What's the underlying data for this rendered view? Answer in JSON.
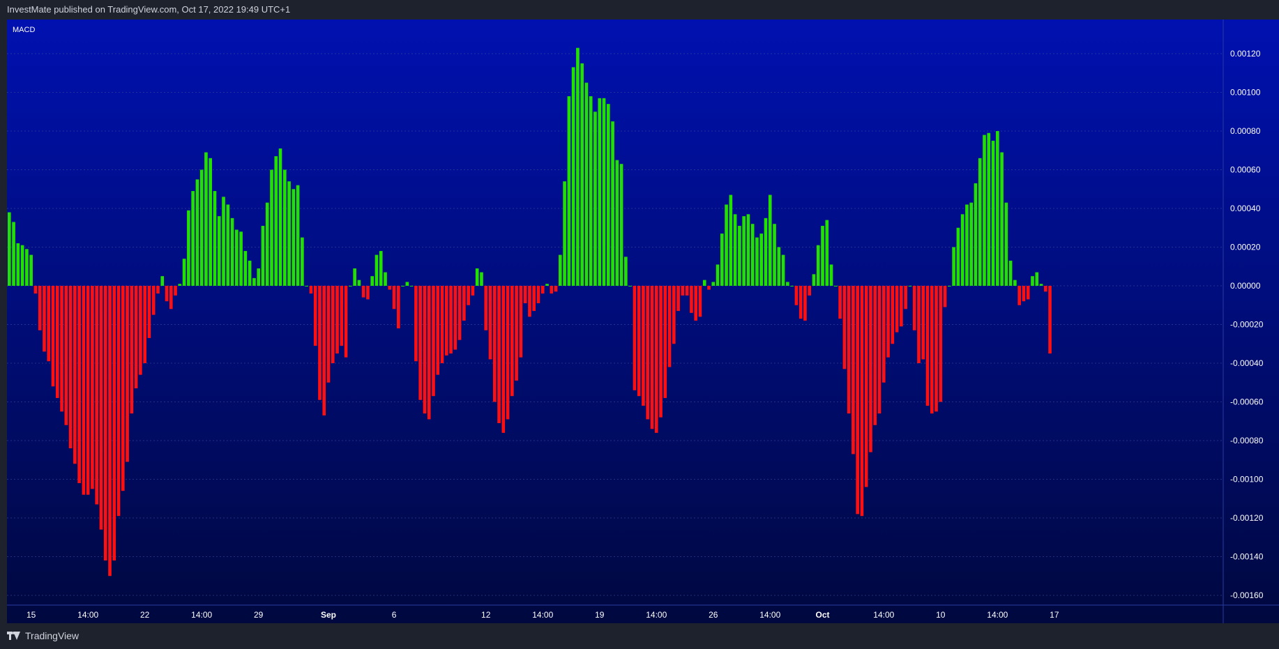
{
  "header": {
    "published_text": "InvestMate published on TradingView.com, Oct 17, 2022 19:49 UTC+1"
  },
  "indicator": {
    "label": "MACD"
  },
  "footer": {
    "brand": "TradingView",
    "logo_icon": "tradingview-logo-icon"
  },
  "colors": {
    "background_top": "#0011b0",
    "background_bottom": "#00083f",
    "positive": "#22e000",
    "negative": "#ff1010",
    "axis_text": "#ffffff"
  },
  "chart_data": {
    "type": "bar",
    "title": "MACD",
    "ylim": [
      -0.00166,
      0.00139
    ],
    "y_ticks": [
      "0.00120",
      "0.00100",
      "0.00080",
      "0.00060",
      "0.00040",
      "0.00020",
      "0.00000",
      "-0.00020",
      "-0.00040",
      "-0.00060",
      "-0.00080",
      "-0.00100",
      "-0.00120",
      "-0.00140",
      "-0.00160"
    ],
    "x_ticks": [
      {
        "label": "15",
        "index": 5
      },
      {
        "label": "14:00",
        "index": 18
      },
      {
        "label": "22",
        "index": 31
      },
      {
        "label": "14:00",
        "index": 44
      },
      {
        "label": "29",
        "index": 57
      },
      {
        "label": "Sep",
        "index": 73
      },
      {
        "label": "6",
        "index": 88
      },
      {
        "label": "12",
        "index": 109
      },
      {
        "label": "14:00",
        "index": 122
      },
      {
        "label": "19",
        "index": 135
      },
      {
        "label": "14:00",
        "index": 148
      },
      {
        "label": "26",
        "index": 161
      },
      {
        "label": "14:00",
        "index": 174
      },
      {
        "label": "Oct",
        "index": 186
      },
      {
        "label": "14:00",
        "index": 200
      },
      {
        "label": "10",
        "index": 213
      },
      {
        "label": "14:00",
        "index": 226
      },
      {
        "label": "17",
        "index": 239
      }
    ],
    "grid": true,
    "legend": "none",
    "values": [
      0.00038,
      0.00033,
      0.00022,
      0.00021,
      0.00019,
      0.00016,
      -4e-05,
      -0.00023,
      -0.00034,
      -0.00039,
      -0.00052,
      -0.00058,
      -0.00065,
      -0.00072,
      -0.00084,
      -0.00092,
      -0.00102,
      -0.00108,
      -0.00108,
      -0.00105,
      -0.00113,
      -0.00126,
      -0.00142,
      -0.0015,
      -0.00142,
      -0.00119,
      -0.00106,
      -0.00091,
      -0.00066,
      -0.00053,
      -0.00046,
      -0.0004,
      -0.00027,
      -0.00015,
      -4e-05,
      5e-05,
      -8e-05,
      -0.00012,
      -5e-05,
      1e-05,
      0.00014,
      0.00039,
      0.00049,
      0.00055,
      0.0006,
      0.00069,
      0.00066,
      0.00049,
      0.00036,
      0.00046,
      0.00042,
      0.00035,
      0.00029,
      0.00028,
      0.00018,
      0.00013,
      4e-05,
      9e-05,
      0.00031,
      0.00043,
      0.0006,
      0.00067,
      0.00071,
      0.0006,
      0.00054,
      0.0005,
      0.00052,
      0.00025,
      0.0,
      -4e-05,
      -0.00031,
      -0.00059,
      -0.00067,
      -0.0005,
      -0.0004,
      -0.00035,
      -0.00031,
      -0.00037,
      0.0,
      9e-05,
      3e-05,
      -6e-05,
      -7e-05,
      5e-05,
      0.00016,
      0.00018,
      7e-05,
      -2e-05,
      -0.00012,
      -0.00022,
      0.0,
      2e-05,
      0.0,
      -0.00039,
      -0.00059,
      -0.00066,
      -0.00069,
      -0.00057,
      -0.00046,
      -0.0004,
      -0.00036,
      -0.00035,
      -0.00033,
      -0.00028,
      -0.00018,
      -0.0001,
      -5e-05,
      9e-05,
      7e-05,
      -0.00023,
      -0.00038,
      -0.0006,
      -0.00071,
      -0.00076,
      -0.00069,
      -0.00057,
      -0.00049,
      -0.00037,
      -9e-05,
      -0.00016,
      -0.00013,
      -9e-05,
      -4e-05,
      1e-05,
      -4e-05,
      -3e-05,
      0.00016,
      0.00054,
      0.00098,
      0.00113,
      0.00123,
      0.00115,
      0.00105,
      0.00098,
      0.0009,
      0.00097,
      0.00097,
      0.00094,
      0.00085,
      0.00065,
      0.00063,
      0.00015,
      0.0,
      -0.00054,
      -0.00057,
      -0.00062,
      -0.00069,
      -0.00074,
      -0.00076,
      -0.00068,
      -0.00058,
      -0.00042,
      -0.0003,
      -0.00013,
      -5e-05,
      -5e-05,
      -0.00014,
      -0.00018,
      -0.00016,
      3e-05,
      -2e-05,
      2e-05,
      0.00011,
      0.00027,
      0.00042,
      0.00047,
      0.00037,
      0.00031,
      0.00036,
      0.00037,
      0.00032,
      0.00025,
      0.00027,
      0.00035,
      0.00047,
      0.00032,
      0.0002,
      0.00016,
      2e-05,
      0.0,
      -0.0001,
      -0.00017,
      -0.00018,
      -5e-05,
      6e-05,
      0.00021,
      0.00031,
      0.00034,
      0.00011,
      0.0,
      -0.00017,
      -0.00043,
      -0.00066,
      -0.00087,
      -0.00118,
      -0.00119,
      -0.00104,
      -0.00086,
      -0.00072,
      -0.00066,
      -0.0005,
      -0.00037,
      -0.0003,
      -0.00024,
      -0.00021,
      -0.00012,
      0.0,
      -0.00023,
      -0.0004,
      -0.00038,
      -0.00062,
      -0.00066,
      -0.00065,
      -0.0006,
      -0.00011,
      0.0,
      0.0002,
      0.0003,
      0.00037,
      0.00042,
      0.00043,
      0.00053,
      0.00066,
      0.00078,
      0.00079,
      0.00075,
      0.0008,
      0.00069,
      0.00043,
      0.00013,
      3e-05,
      -0.0001,
      -8e-05,
      -7e-05,
      5e-05,
      7e-05,
      1e-05,
      -3e-05,
      -0.00035
    ]
  }
}
